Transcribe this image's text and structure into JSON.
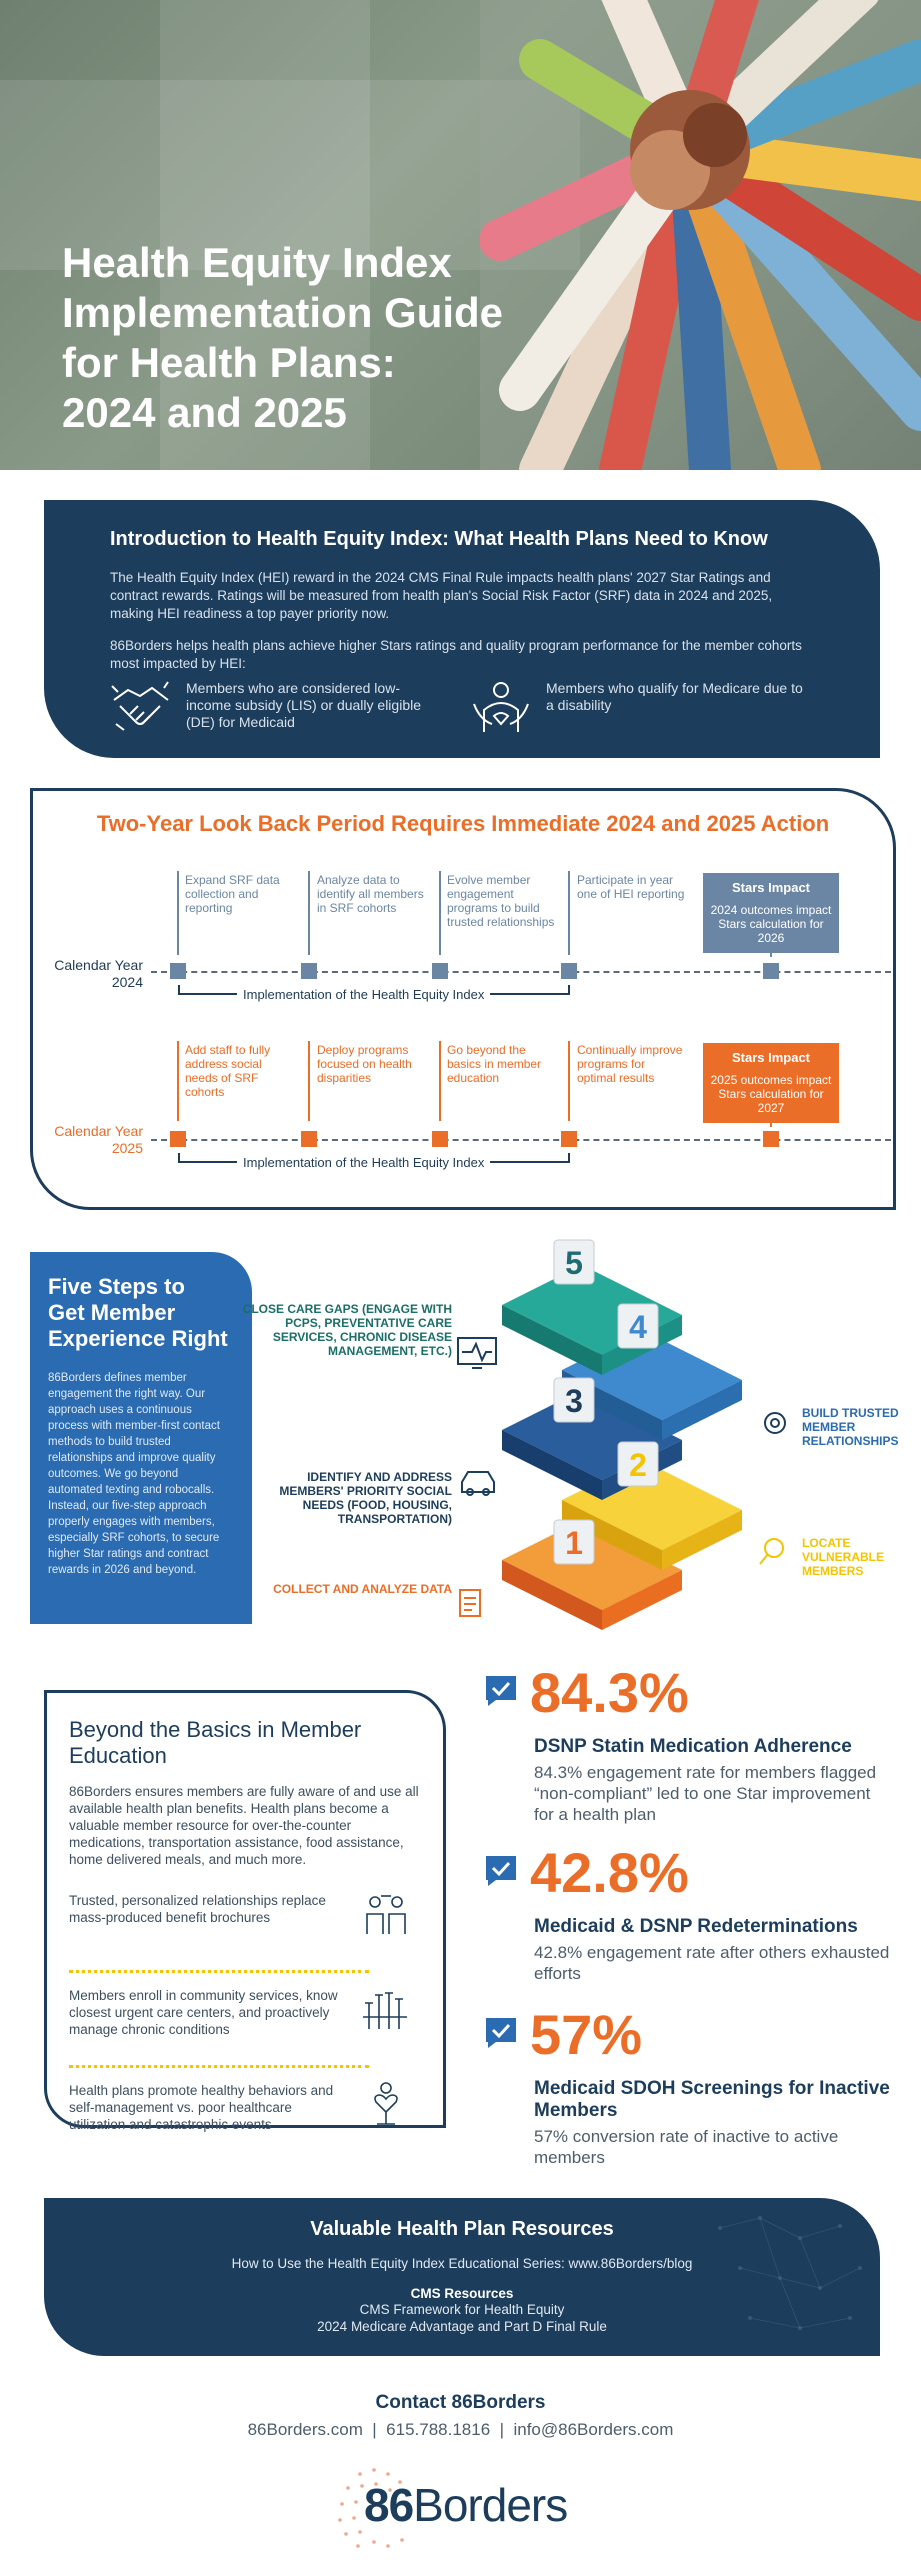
{
  "hero": {
    "title_line1": "Health Equity Index",
    "title_line2": "Implementation Guide",
    "title_line3": "for Health Plans:",
    "title_line4": "2024 and 2025"
  },
  "intro": {
    "heading": "Introduction to Health Equity Index: What Health Plans Need to Know",
    "para1": "The Health Equity Index (HEI) reward in the 2024 CMS Final Rule impacts health plans' 2027 Star Ratings and contract rewards. Ratings will be measured from health plan's Social Risk Factor (SRF) data in 2024 and 2025, making HEI readiness a top payer priority now.",
    "para2": "86Borders helps health plans achieve higher Stars ratings and quality program performance for the member cohorts most impacted by HEI:",
    "member1": "Members who are considered low-income subsidy (LIS) or dually eligible (DE) for Medicaid",
    "member2": "Members who qualify for Medicare due to a disability"
  },
  "timeline": {
    "heading": "Two-Year Look Back Period Requires Immediate 2024 and 2025 Action",
    "row2024": {
      "label_line1": "Calendar Year",
      "label_line2": "2024",
      "steps": [
        "Expand SRF data collection and reporting",
        "Analyze data to identify all members in SRF cohorts",
        "Evolve member engagement programs to build trusted relationships",
        "Participate in year one of HEI reporting"
      ],
      "impact_title": "Stars Impact",
      "impact_text": "2024 outcomes impact Stars calculation for 2026",
      "implementation": "Implementation of the Health Equity Index"
    },
    "row2025": {
      "label_line1": "Calendar Year",
      "label_line2": "2025",
      "steps": [
        "Add staff to fully address social needs of SRF cohorts",
        "Deploy programs focused on health disparities",
        "Go beyond the basics in member education",
        "Continually improve programs for optimal results"
      ],
      "impact_title": "Stars Impact",
      "impact_text": "2025 outcomes impact Stars calculation for 2027",
      "implementation": "Implementation of the Health Equity Index"
    }
  },
  "five_steps": {
    "heading_line1": "Five Steps to",
    "heading_line2": "Get Member",
    "heading_line3": "Experience Right",
    "body": "86Borders defines member engagement the right way. Our approach uses a continuous process with member-first contact methods to build trusted relationships and improve quality outcomes. We go beyond automated texting and robocalls. Instead, our five-step approach properly engages with members, especially SRF cohorts, to secure higher Star ratings and contract rewards in 2026 and beyond.",
    "numbers": [
      "1",
      "2",
      "3",
      "4",
      "5"
    ],
    "step1": "COLLECT AND ANALYZE DATA",
    "step2": "LOCATE VULNERABLE MEMBERS",
    "step3": "IDENTIFY AND ADDRESS MEMBERS' PRIORITY SOCIAL NEEDS (FOOD, HOUSING, TRANSPORTATION)",
    "step4": "BUILD TRUSTED MEMBER RELATIONSHIPS",
    "step5": "CLOSE CARE GAPS (ENGAGE WITH PCPS, PREVENTATIVE CARE SERVICES, CHRONIC DISEASE MANAGEMENT, ETC.)"
  },
  "beyond": {
    "heading": "Beyond the Basics in Member Education",
    "lead": "86Borders ensures members are fully aware of and use all available health plan benefits. Health plans become a valuable member resource for over-the-counter medications, transportation assistance, food assistance, home delivered meals, and much more.",
    "items": [
      "Trusted, personalized relationships replace mass-produced benefit brochures",
      "Members enroll in community services, know closest urgent care centers, and proactively manage chronic conditions",
      "Health plans promote healthy behaviors and self-management vs. poor healthcare utilization and catastrophic events"
    ]
  },
  "stats": [
    {
      "value": "84.3%",
      "title": "DSNP Statin Medication Adherence",
      "desc": "84.3% engagement rate for members flagged “non-compliant” led to one Star improvement for a health plan"
    },
    {
      "value": "42.8%",
      "title": "Medicaid & DSNP Redeterminations",
      "desc": "42.8% engagement rate after others exhausted efforts"
    },
    {
      "value": "57%",
      "title": "Medicaid SDOH Screenings for Inactive Members",
      "desc": "57% conversion rate of inactive to active members"
    }
  ],
  "resources": {
    "heading": "Valuable Health Plan Resources",
    "series": "How to Use the Health Equity Index Educational Series: www.86Borders/blog",
    "cms_heading": "CMS Resources",
    "cms1": "CMS Framework for Health Equity",
    "cms2": "2024 Medicare Advantage and Part D Final Rule"
  },
  "contact": {
    "heading": "Contact 86Borders",
    "line": "86Borders.com  |  615.788.1816  |  info@86Borders.com"
  },
  "logo": {
    "num": "86",
    "word": "Borders"
  },
  "colors": {
    "navy": "#1d3d5c",
    "orange": "#ea6d28",
    "blue": "#2a6bb1",
    "teal": "#1f9a8f",
    "yellow": "#f5c400",
    "slate": "#6b86a5"
  }
}
